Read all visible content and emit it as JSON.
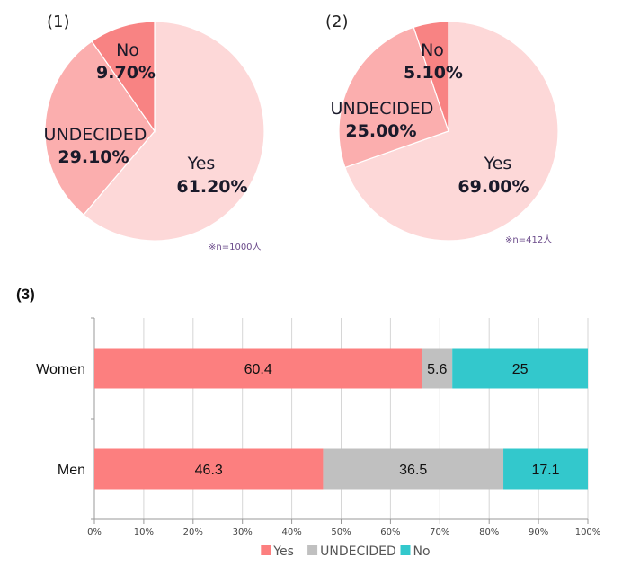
{
  "chart_data": [
    {
      "type": "pie",
      "title": "(1)",
      "note": "※n=1000人",
      "slices": [
        {
          "label": "Yes",
          "value": 61.2,
          "display": "61.20%",
          "color": "#fdd8d8"
        },
        {
          "label": "UNDECIDED",
          "value": 29.1,
          "display": "29.10%",
          "color": "#fbaeae"
        },
        {
          "label": "No",
          "value": 9.7,
          "display": "9.70%",
          "color": "#f88383"
        }
      ]
    },
    {
      "type": "pie",
      "title": "(2)",
      "note": "※n=412人",
      "slices": [
        {
          "label": "Yes",
          "value": 69.0,
          "display": "69.00%",
          "color": "#fdd8d8"
        },
        {
          "label": "UNDECIDED",
          "value": 25.0,
          "display": "25.00%",
          "color": "#fbaeae"
        },
        {
          "label": "No",
          "value": 5.1,
          "display": "5.10%",
          "color": "#f88383"
        }
      ]
    },
    {
      "type": "bar",
      "orientation": "horizontal",
      "stacked": "percent",
      "title": "(3)",
      "categories": [
        "Women",
        "Men"
      ],
      "series": [
        {
          "name": "Yes",
          "values": [
            60.4,
            46.3
          ],
          "color": "#fc7f7f"
        },
        {
          "name": "UNDECIDED",
          "values": [
            5.6,
            36.5
          ],
          "color": "#c0c0c0"
        },
        {
          "name": "No",
          "values": [
            25,
            17.1
          ],
          "color": "#33c8cc"
        }
      ],
      "xlim": [
        0,
        100
      ],
      "xticks": [
        "0%",
        "10%",
        "20%",
        "30%",
        "40%",
        "50%",
        "60%",
        "70%",
        "80%",
        "90%",
        "100%"
      ],
      "grid": true,
      "legend": "bottom"
    }
  ]
}
